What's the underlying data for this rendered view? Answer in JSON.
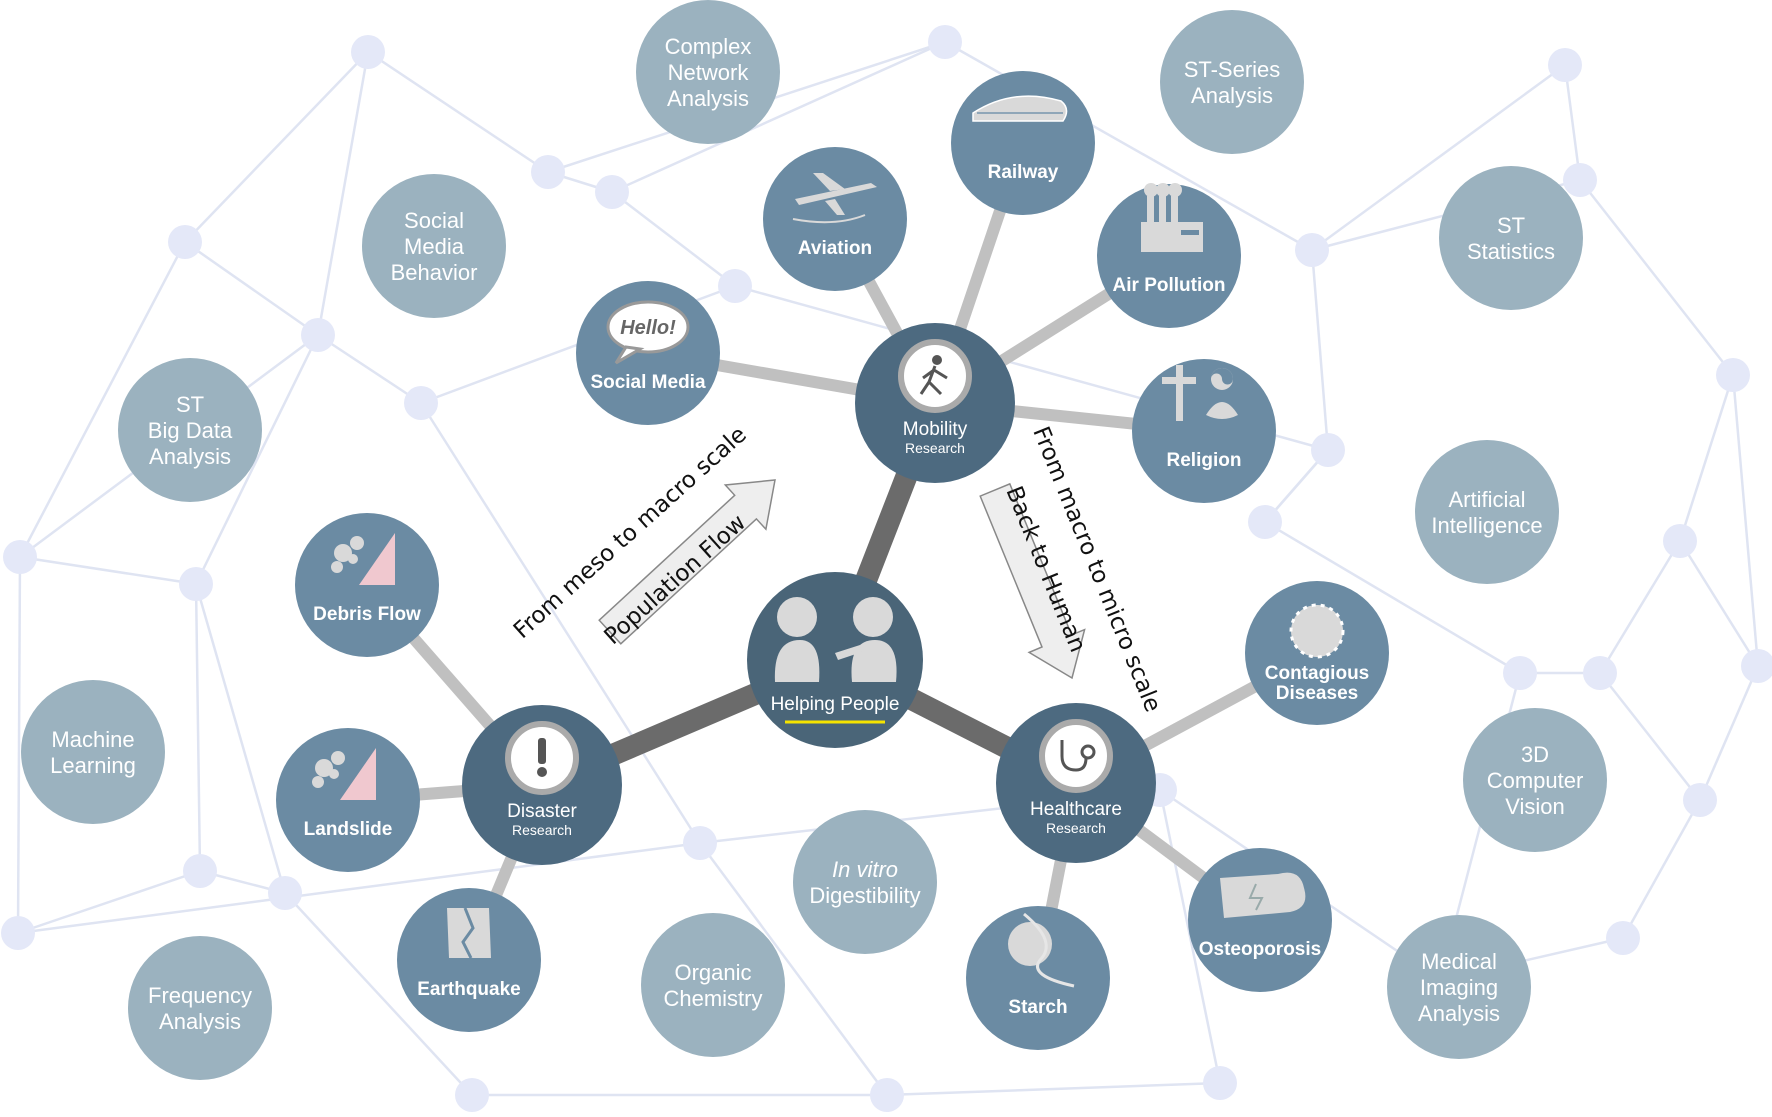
{
  "colors": {
    "background": "#ffffff",
    "net_edge": "#dfe4f2",
    "net_dot": "#e4e8f8",
    "outer_node": "#9bb2bf",
    "topic_node": "#6b8ba3",
    "hub_node": "#4d6a80",
    "center_node": "#4a6578",
    "spoke_light": "#c0c0c0",
    "spoke_dark": "#6b6b6b",
    "highlight_line": "#f5e400",
    "icon_fill": "#d9d9d9",
    "arrow_fill": "#eeeeee",
    "arrow_stroke": "#888888"
  },
  "center": {
    "label": "Helping People",
    "icon": "two-people-icon"
  },
  "hubs": [
    {
      "id": "mobility",
      "label": "Mobility",
      "sublabel": "Research",
      "icon": "walking-person-icon"
    },
    {
      "id": "disaster",
      "label": "Disaster",
      "sublabel": "Research",
      "icon": "exclamation-icon"
    },
    {
      "id": "healthcare",
      "label": "Healthcare",
      "sublabel": "Research",
      "icon": "stethoscope-icon"
    }
  ],
  "topics": [
    {
      "id": "railway",
      "label": "Railway",
      "icon": "train-icon"
    },
    {
      "id": "aviation",
      "label": "Aviation",
      "icon": "airplane-icon"
    },
    {
      "id": "social_media",
      "label": "Social Media",
      "icon": "speech-bubble-icon",
      "bubble_text": "Hello!"
    },
    {
      "id": "air_pollution",
      "label": "Air Pollution",
      "icon": "factory-icon"
    },
    {
      "id": "religion",
      "label": "Religion",
      "icon": "religion-symbols-icon"
    },
    {
      "id": "debris_flow",
      "label": "Debris Flow",
      "icon": "debris-flow-icon"
    },
    {
      "id": "landslide",
      "label": "Landslide",
      "icon": "landslide-icon"
    },
    {
      "id": "earthquake",
      "label": "Earthquake",
      "icon": "cracked-building-icon"
    },
    {
      "id": "contagious",
      "label": "Contagious",
      "label2": "Diseases",
      "icon": "virus-icon"
    },
    {
      "id": "osteoporosis",
      "label": "Osteoporosis",
      "icon": "bone-icon"
    },
    {
      "id": "starch",
      "label": "Starch",
      "icon": "starch-dna-icon"
    }
  ],
  "methods": [
    {
      "id": "complex_network",
      "lines": [
        "Complex",
        "Network",
        "Analysis"
      ]
    },
    {
      "id": "st_series",
      "lines": [
        "ST-Series",
        "Analysis"
      ]
    },
    {
      "id": "social_media_behavior",
      "lines": [
        "Social",
        "Media",
        "Behavior"
      ]
    },
    {
      "id": "st_statistics",
      "lines": [
        "ST",
        "Statistics"
      ]
    },
    {
      "id": "st_big_data",
      "lines": [
        "ST",
        "Big Data",
        "Analysis"
      ]
    },
    {
      "id": "artificial_intelligence",
      "lines": [
        "Artificial",
        "Intelligence"
      ]
    },
    {
      "id": "machine_learning",
      "lines": [
        "Machine",
        "Learning"
      ]
    },
    {
      "id": "computer_vision",
      "lines": [
        "3D",
        "Computer",
        "Vision"
      ]
    },
    {
      "id": "in_vitro",
      "lines": [
        "In vitro",
        "Digestibility"
      ],
      "italic_first": true
    },
    {
      "id": "frequency",
      "lines": [
        "Frequency",
        "Analysis"
      ]
    },
    {
      "id": "organic_chemistry",
      "lines": [
        "Organic",
        "Chemistry"
      ]
    },
    {
      "id": "medical_imaging",
      "lines": [
        "Medical",
        "Imaging",
        "Analysis"
      ]
    }
  ],
  "annotations": {
    "meso_to_macro": "From meso to macro scale",
    "population_flow": "Population Flow",
    "macro_to_micro": "From macro to micro scale",
    "back_to_human": "Back to Human"
  }
}
